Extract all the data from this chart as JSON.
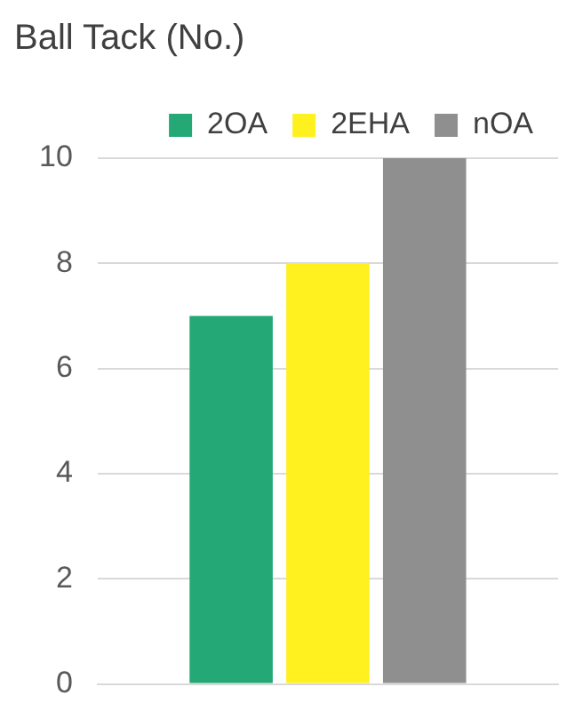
{
  "chart_data": {
    "type": "bar",
    "title": "Ball Tack (No.)",
    "categories": [
      null
    ],
    "series": [
      {
        "name": "2OA",
        "color": "#23a876",
        "values": [
          7
        ]
      },
      {
        "name": "2EHA",
        "color": "#fff01f",
        "values": [
          8
        ]
      },
      {
        "name": "nOA",
        "color": "#8f8f8f",
        "values": [
          10
        ]
      }
    ],
    "ylim": [
      0,
      10
    ],
    "yticks": [
      0,
      2,
      4,
      6,
      8,
      10
    ],
    "grid": "y",
    "legend": "top",
    "tick_labels": "y"
  }
}
